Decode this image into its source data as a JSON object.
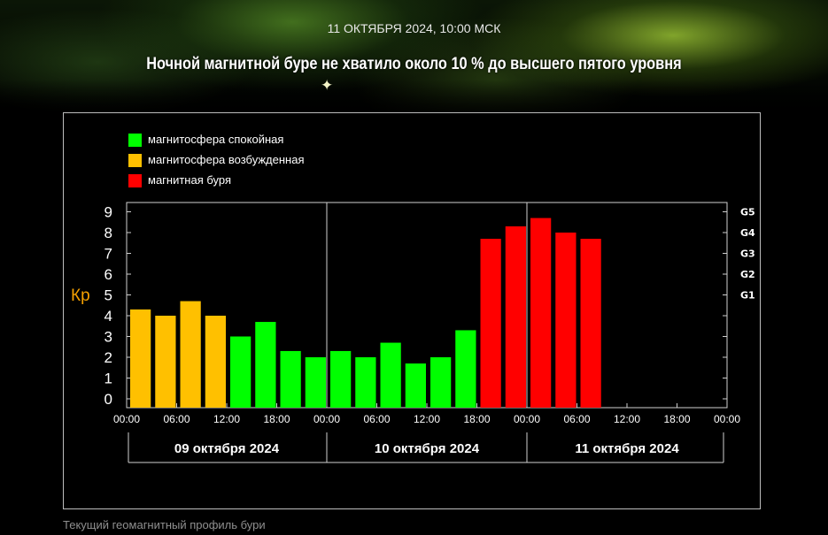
{
  "header": {
    "date": "11 ОКТЯБРЯ 2024, 10:00 МСК",
    "title": "Ночной магнитной буре не хватило около 10 % до высшего пятого уровня"
  },
  "colors": {
    "calm": "#00ff00",
    "excited": "#ffc000",
    "storm": "#ff0000",
    "kp_label": "#f5a000"
  },
  "legend": [
    {
      "key": "calm",
      "label": "магнитосфера спокойная"
    },
    {
      "key": "excited",
      "label": "магнитосфера возбужденная"
    },
    {
      "key": "storm",
      "label": "магнитная буря"
    }
  ],
  "caption": "Текущий геомагнитный профиль бури",
  "chart_data": {
    "type": "bar",
    "ylabel": "Кp",
    "ylim": [
      0,
      9
    ],
    "y_ticks": [
      "0",
      "1",
      "2",
      "3",
      "4",
      "5",
      "6",
      "7",
      "8",
      "9"
    ],
    "g_levels": [
      {
        "label": "G1",
        "kp": 5
      },
      {
        "label": "G2",
        "kp": 6
      },
      {
        "label": "G3",
        "kp": 7
      },
      {
        "label": "G4",
        "kp": 8
      },
      {
        "label": "G5",
        "kp": 9
      }
    ],
    "x_ticks": [
      "00:00",
      "06:00",
      "12:00",
      "18:00",
      "00:00",
      "06:00",
      "12:00",
      "18:00",
      "00:00",
      "06:00",
      "12:00",
      "18:00",
      "00:00"
    ],
    "days": [
      "09 октября 2024",
      "10 октября 2024",
      "11 октября 2024"
    ],
    "interval_hours": 3,
    "bars": [
      {
        "start": "09 октября 2024 00:00",
        "kp": 4.3,
        "status": "excited"
      },
      {
        "start": "09 октября 2024 03:00",
        "kp": 4.0,
        "status": "excited"
      },
      {
        "start": "09 октября 2024 06:00",
        "kp": 4.7,
        "status": "excited"
      },
      {
        "start": "09 октября 2024 09:00",
        "kp": 4.0,
        "status": "excited"
      },
      {
        "start": "09 октября 2024 12:00",
        "kp": 3.0,
        "status": "calm"
      },
      {
        "start": "09 октября 2024 15:00",
        "kp": 3.7,
        "status": "calm"
      },
      {
        "start": "09 октября 2024 18:00",
        "kp": 2.3,
        "status": "calm"
      },
      {
        "start": "09 октября 2024 21:00",
        "kp": 2.0,
        "status": "calm"
      },
      {
        "start": "10 октября 2024 00:00",
        "kp": 2.3,
        "status": "calm"
      },
      {
        "start": "10 октября 2024 03:00",
        "kp": 2.0,
        "status": "calm"
      },
      {
        "start": "10 октября 2024 06:00",
        "kp": 2.7,
        "status": "calm"
      },
      {
        "start": "10 октября 2024 09:00",
        "kp": 1.7,
        "status": "calm"
      },
      {
        "start": "10 октября 2024 12:00",
        "kp": 2.0,
        "status": "calm"
      },
      {
        "start": "10 октября 2024 15:00",
        "kp": 3.3,
        "status": "calm"
      },
      {
        "start": "10 октября 2024 18:00",
        "kp": 7.7,
        "status": "storm"
      },
      {
        "start": "10 октября 2024 21:00",
        "kp": 8.3,
        "status": "storm"
      },
      {
        "start": "11 октября 2024 00:00",
        "kp": 8.7,
        "status": "storm"
      },
      {
        "start": "11 октября 2024 03:00",
        "kp": 8.0,
        "status": "storm"
      },
      {
        "start": "11 октября 2024 06:00",
        "kp": 7.7,
        "status": "storm"
      }
    ]
  }
}
